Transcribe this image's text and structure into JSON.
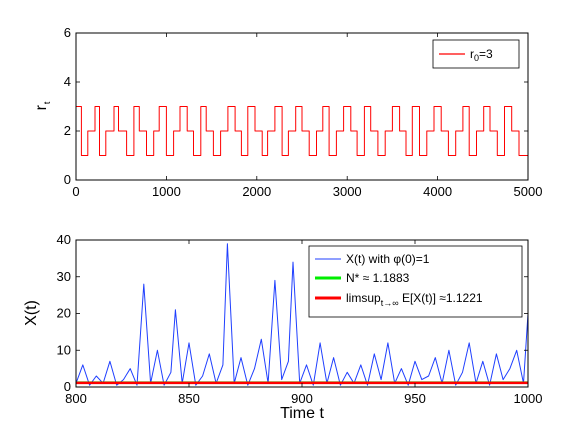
{
  "chart_data": [
    {
      "type": "line",
      "title": "",
      "xlabel": "",
      "ylabel": "r",
      "ylabel_subscript": "t",
      "xlim": [
        0,
        5000
      ],
      "ylim": [
        0,
        6
      ],
      "xticks": [
        0,
        1000,
        2000,
        3000,
        4000,
        5000
      ],
      "yticks": [
        0,
        2,
        4,
        6
      ],
      "grid": false,
      "legend_position": "top-right",
      "series": [
        {
          "name": "r",
          "name_subscript": "0",
          "name_suffix": "=3",
          "color": "#ff0000",
          "step": true,
          "states": [
            1,
            2,
            3
          ],
          "x": [
            0,
            60,
            130,
            210,
            260,
            330,
            420,
            470,
            560,
            640,
            700,
            780,
            860,
            920,
            1000,
            1080,
            1150,
            1230,
            1300,
            1380,
            1440,
            1520,
            1600,
            1680,
            1760,
            1830,
            1900,
            1980,
            2060,
            2120,
            2200,
            2280,
            2350,
            2430,
            2500,
            2580,
            2660,
            2730,
            2800,
            2880,
            2960,
            3040,
            3110,
            3190,
            3260,
            3340,
            3420,
            3500,
            3580,
            3650,
            3720,
            3800,
            3880,
            3960,
            4040,
            4120,
            4200,
            4280,
            4350,
            4430,
            4510,
            4580,
            4660,
            4740,
            4820,
            4900,
            5000
          ],
          "y": [
            3,
            1,
            2,
            3,
            1,
            2,
            3,
            2,
            1,
            3,
            2,
            1,
            2,
            3,
            1,
            2,
            3,
            2,
            1,
            3,
            2,
            1,
            2,
            3,
            2,
            1,
            3,
            2,
            1,
            2,
            3,
            1,
            2,
            3,
            2,
            1,
            2,
            3,
            1,
            2,
            3,
            2,
            1,
            3,
            2,
            1,
            2,
            3,
            2,
            1,
            3,
            1,
            2,
            3,
            2,
            1,
            2,
            3,
            1,
            2,
            3,
            2,
            1,
            3,
            2,
            1,
            2
          ]
        }
      ]
    },
    {
      "type": "line",
      "title": "",
      "xlabel": "Time t",
      "ylabel": "X(t)",
      "xlim": [
        800,
        1000
      ],
      "ylim": [
        0,
        40
      ],
      "xticks": [
        800,
        850,
        900,
        950,
        1000
      ],
      "yticks": [
        0,
        10,
        20,
        30,
        40
      ],
      "grid": false,
      "legend_position": "top-right",
      "series": [
        {
          "name": "X(t) with φ(0)=1",
          "color": "#1f3fff",
          "x": [
            800,
            803,
            806,
            809,
            812,
            815,
            818,
            821,
            824,
            827,
            830,
            833,
            836,
            839,
            842,
            844,
            847,
            850,
            853,
            856,
            859,
            862,
            865,
            867,
            870,
            873,
            876,
            879,
            882,
            885,
            888,
            891,
            894,
            896,
            899,
            902,
            905,
            908,
            911,
            914,
            917,
            920,
            923,
            926,
            929,
            932,
            935,
            938,
            941,
            944,
            947,
            950,
            953,
            956,
            959,
            962,
            965,
            968,
            971,
            974,
            977,
            980,
            983,
            986,
            989,
            992,
            995,
            998,
            1000
          ],
          "y": [
            1,
            6,
            0.5,
            3,
            1,
            7,
            0.5,
            2,
            5,
            0.5,
            28,
            1,
            10,
            0.5,
            4,
            21,
            1,
            12,
            0.5,
            3,
            9,
            1,
            6,
            39,
            1,
            8,
            0.5,
            5,
            13,
            1,
            29,
            2,
            7,
            34,
            1,
            6,
            0.5,
            12,
            1,
            8,
            0.5,
            4,
            1,
            6,
            0.5,
            9,
            2,
            12,
            1,
            5,
            0.5,
            7,
            2,
            3,
            8,
            1,
            10,
            0.5,
            4,
            12,
            1,
            7,
            0.5,
            9,
            2,
            5,
            10,
            1,
            20
          ]
        },
        {
          "name": "N* ≈ 1.1883",
          "color": "#00ee00",
          "x": [
            800,
            1000
          ],
          "y": [
            1.1883,
            1.1883
          ]
        },
        {
          "name": "limsup",
          "name_subscript": "t→∞",
          "name_suffix": " E[X(t)] ≈1.1221",
          "color": "#ff0000",
          "x": [
            800,
            1000
          ],
          "y": [
            1.1221,
            1.1221
          ]
        }
      ]
    }
  ]
}
